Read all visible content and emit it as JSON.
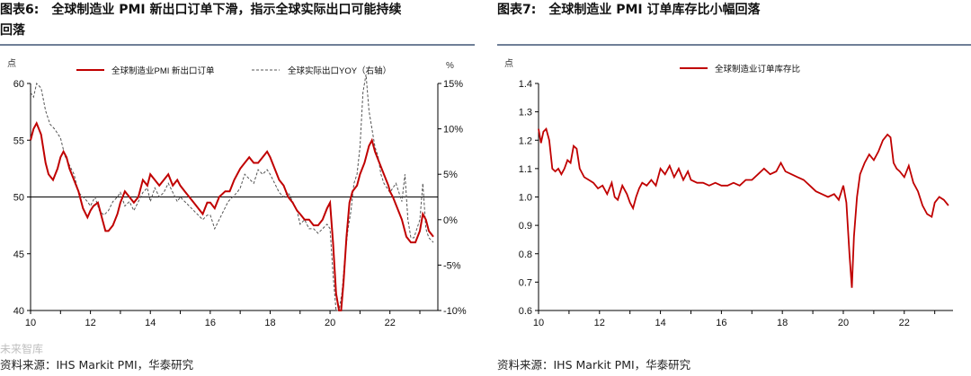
{
  "colors": {
    "red": "#c00000",
    "dash": "#555555",
    "accent": "#6f7f97"
  },
  "left": {
    "fig_label": "图表6:",
    "title_line1": "全球制造业 PMI 新出口订单下滑，指示全球实际出口可能持续",
    "title_line2": "回落",
    "source": "资料来源：IHS Markit PMI，华泰研究",
    "watermark": "未来智库",
    "chart_data": {
      "type": "line",
      "ylabel": "点",
      "y2label": "%",
      "ylim": [
        40,
        60
      ],
      "y2lim": [
        -10,
        15
      ],
      "yticks": [
        "40",
        "45",
        "50",
        "55",
        "60"
      ],
      "y2ticks": [
        "-10%",
        "-5%",
        "0%",
        "5%",
        "10%",
        "15%"
      ],
      "xlim": [
        2010,
        2023.6
      ],
      "xticks": [
        {
          "v": 2010,
          "label": "10"
        },
        {
          "v": 2012,
          "label": "12"
        },
        {
          "v": 2014,
          "label": "14"
        },
        {
          "v": 2016,
          "label": "16"
        },
        {
          "v": 2018,
          "label": "18"
        },
        {
          "v": 2020,
          "label": "20"
        },
        {
          "v": 2022,
          "label": "22"
        }
      ],
      "reference_line": 50,
      "legend": [
        "全球制造业PMI 新出口订单",
        "全球实际出口YOY（右轴）"
      ],
      "series": [
        {
          "name": "全球制造业PMI 新出口订单",
          "axis": "left",
          "x": [
            2010.0,
            2010.1,
            2010.2,
            2010.35,
            2010.5,
            2010.6,
            2010.75,
            2010.9,
            2011.0,
            2011.1,
            2011.2,
            2011.3,
            2011.45,
            2011.6,
            2011.75,
            2011.9,
            2012.0,
            2012.1,
            2012.25,
            2012.4,
            2012.5,
            2012.6,
            2012.75,
            2012.9,
            2013.0,
            2013.15,
            2013.3,
            2013.45,
            2013.6,
            2013.75,
            2013.9,
            2014.0,
            2014.15,
            2014.3,
            2014.45,
            2014.6,
            2014.75,
            2014.9,
            2015.0,
            2015.15,
            2015.3,
            2015.45,
            2015.6,
            2015.75,
            2015.9,
            2016.0,
            2016.15,
            2016.3,
            2016.5,
            2016.65,
            2016.8,
            2017.0,
            2017.15,
            2017.3,
            2017.45,
            2017.6,
            2017.75,
            2017.9,
            2018.0,
            2018.15,
            2018.3,
            2018.45,
            2018.6,
            2018.75,
            2018.9,
            2019.0,
            2019.15,
            2019.3,
            2019.45,
            2019.6,
            2019.75,
            2019.9,
            2020.0,
            2020.1,
            2020.2,
            2020.3,
            2020.37,
            2020.45,
            2020.55,
            2020.65,
            2020.75,
            2020.9,
            2021.0,
            2021.15,
            2021.3,
            2021.4,
            2021.5,
            2021.65,
            2021.8,
            2021.95,
            2022.0,
            2022.1,
            2022.25,
            2022.4,
            2022.55,
            2022.7,
            2022.85,
            2023.0,
            2023.1,
            2023.2,
            2023.3,
            2023.45
          ],
          "values": [
            55.0,
            56.0,
            56.5,
            55.5,
            53.0,
            52.0,
            51.5,
            52.5,
            53.5,
            54.0,
            53.5,
            52.5,
            51.5,
            50.5,
            49.0,
            48.2,
            48.8,
            49.2,
            49.5,
            48.0,
            47.0,
            47.0,
            47.5,
            48.5,
            49.5,
            50.5,
            50.0,
            49.5,
            50.0,
            51.5,
            51.0,
            52.0,
            51.5,
            51.0,
            51.5,
            52.0,
            51.0,
            51.5,
            51.0,
            50.5,
            50.0,
            49.5,
            49.0,
            48.5,
            49.5,
            49.5,
            49.0,
            50.0,
            50.5,
            50.5,
            51.5,
            52.5,
            53.0,
            53.5,
            53.0,
            53.0,
            53.5,
            54.0,
            53.5,
            52.5,
            51.5,
            51.0,
            50.0,
            49.5,
            48.8,
            48.5,
            48.0,
            48.0,
            47.5,
            47.5,
            48.0,
            49.0,
            49.5,
            46.0,
            41.5,
            40.0,
            40.0,
            42.5,
            46.5,
            49.5,
            50.5,
            51.0,
            52.0,
            53.0,
            54.5,
            55.0,
            54.0,
            53.0,
            52.0,
            51.0,
            50.5,
            50.0,
            49.0,
            48.0,
            46.5,
            46.0,
            46.0,
            47.0,
            48.5,
            48.0,
            47.0,
            46.5
          ]
        },
        {
          "name": "全球实际出口YOY（右轴）",
          "axis": "right",
          "x": [
            2010.0,
            2010.1,
            2010.2,
            2010.35,
            2010.5,
            2010.65,
            2010.8,
            2011.0,
            2011.15,
            2011.3,
            2011.45,
            2011.6,
            2011.75,
            2011.9,
            2012.0,
            2012.15,
            2012.3,
            2012.45,
            2012.6,
            2012.75,
            2012.9,
            2013.0,
            2013.15,
            2013.3,
            2013.45,
            2013.6,
            2013.75,
            2013.9,
            2014.0,
            2014.15,
            2014.3,
            2014.45,
            2014.6,
            2014.75,
            2014.9,
            2015.0,
            2015.15,
            2015.3,
            2015.45,
            2015.6,
            2015.75,
            2015.9,
            2016.0,
            2016.15,
            2016.3,
            2016.45,
            2016.6,
            2016.75,
            2016.9,
            2017.0,
            2017.15,
            2017.3,
            2017.45,
            2017.6,
            2017.75,
            2017.9,
            2018.0,
            2018.15,
            2018.3,
            2018.45,
            2018.6,
            2018.75,
            2018.9,
            2019.0,
            2019.15,
            2019.3,
            2019.45,
            2019.6,
            2019.75,
            2019.9,
            2020.0,
            2020.1,
            2020.2,
            2020.3,
            2020.4,
            2020.5,
            2020.6,
            2020.7,
            2020.8,
            2020.9,
            2021.0,
            2021.1,
            2021.2,
            2021.3,
            2021.4,
            2021.5,
            2021.6,
            2021.7,
            2021.8,
            2021.9,
            2022.0,
            2022.1,
            2022.2,
            2022.3,
            2022.4,
            2022.5,
            2022.6,
            2022.7,
            2022.8,
            2022.9,
            2023.0,
            2023.1,
            2023.2,
            2023.3,
            2023.45
          ],
          "values": [
            14.0,
            13.5,
            15.0,
            14.5,
            12.0,
            10.5,
            10.0,
            9.0,
            7.0,
            6.0,
            5.0,
            3.0,
            2.5,
            2.0,
            1.5,
            2.5,
            1.0,
            0.5,
            1.0,
            2.0,
            2.5,
            3.0,
            1.5,
            2.0,
            1.0,
            2.0,
            3.0,
            3.5,
            2.0,
            3.5,
            2.5,
            3.0,
            4.0,
            3.0,
            2.0,
            2.5,
            2.0,
            1.5,
            1.0,
            0.5,
            0.0,
            0.5,
            0.5,
            -1.0,
            0.0,
            1.0,
            2.0,
            2.5,
            3.0,
            3.5,
            5.0,
            4.5,
            4.0,
            5.5,
            5.0,
            5.5,
            5.0,
            4.0,
            3.0,
            2.5,
            3.0,
            2.0,
            1.0,
            -0.5,
            0.0,
            -1.0,
            -1.0,
            -1.5,
            -1.0,
            -0.5,
            -1.0,
            -6.0,
            -10.0,
            -10.0,
            -8.0,
            -4.0,
            -1.0,
            1.0,
            4.0,
            5.0,
            8.0,
            14.0,
            16.0,
            12.0,
            10.0,
            8.0,
            7.0,
            5.0,
            4.0,
            3.5,
            3.0,
            3.5,
            4.0,
            3.0,
            2.0,
            5.0,
            0.0,
            -2.0,
            -2.0,
            -1.0,
            0.0,
            4.0,
            -1.0,
            -2.0,
            -2.5
          ]
        }
      ]
    }
  },
  "right": {
    "fig_label": "图表7:",
    "title_line1": "全球制造业 PMI 订单库存比小幅回落",
    "source": "资料来源：IHS Markit PMI，华泰研究",
    "chart_data": {
      "type": "line",
      "ylabel": "点",
      "ylim": [
        0.6,
        1.4
      ],
      "yticks": [
        "0.6",
        "0.7",
        "0.8",
        "0.9",
        "1.0",
        "1.1",
        "1.2",
        "1.3",
        "1.4"
      ],
      "xlim": [
        2010,
        2023.6
      ],
      "xticks": [
        {
          "v": 2010,
          "label": "10"
        },
        {
          "v": 2012,
          "label": "12"
        },
        {
          "v": 2014,
          "label": "14"
        },
        {
          "v": 2016,
          "label": "16"
        },
        {
          "v": 2018,
          "label": "18"
        },
        {
          "v": 2020,
          "label": "20"
        },
        {
          "v": 2022,
          "label": "22"
        }
      ],
      "legend": [
        "全球制造业订单库存比"
      ],
      "series": [
        {
          "name": "全球制造业订单库存比",
          "x": [
            2010.0,
            2010.08,
            2010.16,
            2010.25,
            2010.35,
            2010.45,
            2010.55,
            2010.65,
            2010.75,
            2010.85,
            2010.95,
            2011.05,
            2011.15,
            2011.25,
            2011.35,
            2011.5,
            2011.65,
            2011.8,
            2011.95,
            2012.1,
            2012.25,
            2012.4,
            2012.5,
            2012.6,
            2012.75,
            2012.9,
            2013.0,
            2013.1,
            2013.2,
            2013.3,
            2013.4,
            2013.55,
            2013.7,
            2013.85,
            2014.0,
            2014.15,
            2014.3,
            2014.45,
            2014.6,
            2014.75,
            2014.9,
            2015.0,
            2015.2,
            2015.4,
            2015.6,
            2015.8,
            2016.0,
            2016.2,
            2016.4,
            2016.6,
            2016.8,
            2017.0,
            2017.2,
            2017.4,
            2017.6,
            2017.8,
            2017.95,
            2018.1,
            2018.3,
            2018.5,
            2018.7,
            2018.9,
            2019.1,
            2019.3,
            2019.5,
            2019.7,
            2019.85,
            2020.0,
            2020.1,
            2020.2,
            2020.28,
            2020.35,
            2020.45,
            2020.55,
            2020.7,
            2020.85,
            2021.0,
            2021.15,
            2021.3,
            2021.45,
            2021.55,
            2021.65,
            2021.75,
            2021.85,
            2022.0,
            2022.15,
            2022.3,
            2022.45,
            2022.6,
            2022.75,
            2022.9,
            2023.0,
            2023.15,
            2023.3,
            2023.45
          ],
          "values": [
            1.24,
            1.19,
            1.23,
            1.24,
            1.2,
            1.1,
            1.09,
            1.1,
            1.08,
            1.1,
            1.13,
            1.12,
            1.18,
            1.17,
            1.1,
            1.07,
            1.06,
            1.05,
            1.03,
            1.04,
            1.01,
            1.05,
            1.0,
            0.99,
            1.04,
            1.01,
            0.98,
            0.96,
            1.0,
            1.03,
            1.05,
            1.04,
            1.06,
            1.04,
            1.1,
            1.08,
            1.11,
            1.07,
            1.1,
            1.06,
            1.09,
            1.06,
            1.05,
            1.05,
            1.04,
            1.05,
            1.04,
            1.04,
            1.05,
            1.04,
            1.06,
            1.06,
            1.08,
            1.1,
            1.08,
            1.09,
            1.12,
            1.09,
            1.08,
            1.07,
            1.06,
            1.04,
            1.02,
            1.01,
            1.0,
            1.01,
            0.99,
            1.04,
            0.98,
            0.8,
            0.68,
            0.86,
            1.0,
            1.08,
            1.12,
            1.15,
            1.13,
            1.16,
            1.2,
            1.22,
            1.21,
            1.12,
            1.1,
            1.09,
            1.07,
            1.11,
            1.05,
            1.02,
            0.97,
            0.94,
            0.93,
            0.98,
            1.0,
            0.99,
            0.97
          ]
        }
      ]
    }
  }
}
